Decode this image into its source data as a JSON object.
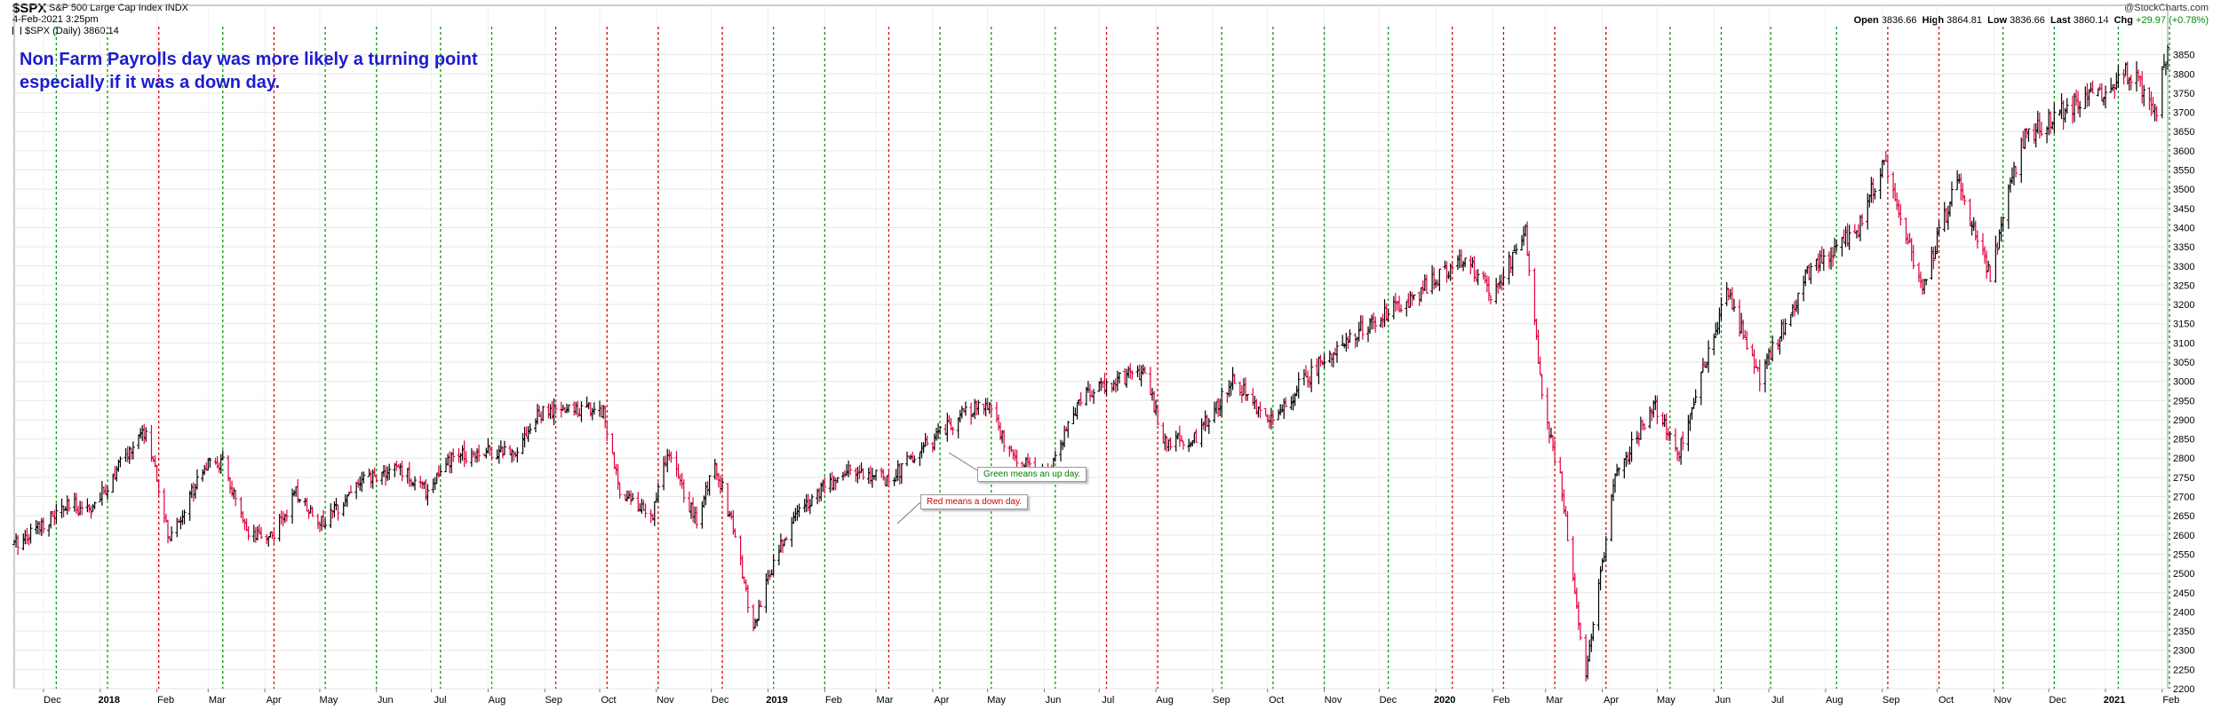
{
  "header": {
    "symbol": "$SPX",
    "name": "S&P 500 Large Cap Index",
    "exchange": "INDX",
    "datetime": "4-Feb-2021 3:25pm",
    "series_label": "$SPX (Daily) 3860.14",
    "brand": "@StockCharts.com",
    "quote": {
      "open_label": "Open",
      "open": "3836.66",
      "high_label": "High",
      "high": "3864.81",
      "low_label": "Low",
      "low": "3836.66",
      "last_label": "Last",
      "last": "3860.14",
      "chg_label": "Chg",
      "chg": "+29.97 (+0.78%)"
    }
  },
  "annotation": {
    "line1": "Non Farm Payrolls day was more likely a turning point",
    "line2": "especially if it was a down day."
  },
  "callouts": {
    "green": "Green means an up day.",
    "red": "Red means a down day."
  },
  "colors": {
    "up_line": "#00a000",
    "down_line": "#e00000",
    "annotation": "#1c1cd0",
    "candle_up": "#000000",
    "candle_down": "#e0003a"
  },
  "chart_data": {
    "type": "line",
    "title": "$SPX S&P 500 Large Cap Index INDX",
    "subtitle": "$SPX (Daily) 3860.14",
    "xlabel": "",
    "ylabel": "",
    "ylim": [
      2200,
      3900
    ],
    "yticks": [
      2200,
      2250,
      2300,
      2350,
      2400,
      2450,
      2500,
      2550,
      2600,
      2650,
      2700,
      2750,
      2800,
      2850,
      2900,
      2950,
      3000,
      3050,
      3100,
      3150,
      3200,
      3250,
      3300,
      3350,
      3400,
      3450,
      3500,
      3550,
      3600,
      3650,
      3700,
      3750,
      3800,
      3850
    ],
    "grid": true,
    "x_range": [
      "2017-11-15",
      "2021-02-04"
    ],
    "month_ticks": [
      {
        "date": "2017-12-01",
        "label": "Dec",
        "bold": false
      },
      {
        "date": "2018-01-01",
        "label": "2018",
        "bold": true
      },
      {
        "date": "2018-02-01",
        "label": "Feb",
        "bold": false
      },
      {
        "date": "2018-03-01",
        "label": "Mar",
        "bold": false
      },
      {
        "date": "2018-04-01",
        "label": "Apr",
        "bold": false
      },
      {
        "date": "2018-05-01",
        "label": "May",
        "bold": false
      },
      {
        "date": "2018-06-01",
        "label": "Jun",
        "bold": false
      },
      {
        "date": "2018-07-01",
        "label": "Jul",
        "bold": false
      },
      {
        "date": "2018-08-01",
        "label": "Aug",
        "bold": false
      },
      {
        "date": "2018-09-01",
        "label": "Sep",
        "bold": false
      },
      {
        "date": "2018-10-01",
        "label": "Oct",
        "bold": false
      },
      {
        "date": "2018-11-01",
        "label": "Nov",
        "bold": false
      },
      {
        "date": "2018-12-01",
        "label": "Dec",
        "bold": false
      },
      {
        "date": "2019-01-01",
        "label": "2019",
        "bold": true
      },
      {
        "date": "2019-02-01",
        "label": "Feb",
        "bold": false
      },
      {
        "date": "2019-03-01",
        "label": "Mar",
        "bold": false
      },
      {
        "date": "2019-04-01",
        "label": "Apr",
        "bold": false
      },
      {
        "date": "2019-05-01",
        "label": "May",
        "bold": false
      },
      {
        "date": "2019-06-01",
        "label": "Jun",
        "bold": false
      },
      {
        "date": "2019-07-01",
        "label": "Jul",
        "bold": false
      },
      {
        "date": "2019-08-01",
        "label": "Aug",
        "bold": false
      },
      {
        "date": "2019-09-01",
        "label": "Sep",
        "bold": false
      },
      {
        "date": "2019-10-01",
        "label": "Oct",
        "bold": false
      },
      {
        "date": "2019-11-01",
        "label": "Nov",
        "bold": false
      },
      {
        "date": "2019-12-01",
        "label": "Dec",
        "bold": false
      },
      {
        "date": "2020-01-01",
        "label": "2020",
        "bold": true
      },
      {
        "date": "2020-02-01",
        "label": "Feb",
        "bold": false
      },
      {
        "date": "2020-03-01",
        "label": "Mar",
        "bold": false
      },
      {
        "date": "2020-04-01",
        "label": "Apr",
        "bold": false
      },
      {
        "date": "2020-05-01",
        "label": "May",
        "bold": false
      },
      {
        "date": "2020-06-01",
        "label": "Jun",
        "bold": false
      },
      {
        "date": "2020-07-01",
        "label": "Jul",
        "bold": false
      },
      {
        "date": "2020-08-01",
        "label": "Aug",
        "bold": false
      },
      {
        "date": "2020-09-01",
        "label": "Sep",
        "bold": false
      },
      {
        "date": "2020-10-01",
        "label": "Oct",
        "bold": false
      },
      {
        "date": "2020-11-01",
        "label": "Nov",
        "bold": false
      },
      {
        "date": "2020-12-01",
        "label": "Dec",
        "bold": false
      },
      {
        "date": "2021-01-01",
        "label": "2021",
        "bold": true
      },
      {
        "date": "2021-02-01",
        "label": "Feb",
        "bold": false
      }
    ],
    "nfp_days": [
      {
        "date": "2017-12-08",
        "dir": "up"
      },
      {
        "date": "2018-01-05",
        "dir": "up"
      },
      {
        "date": "2018-02-02",
        "dir": "down"
      },
      {
        "date": "2018-03-09",
        "dir": "up"
      },
      {
        "date": "2018-04-06",
        "dir": "down"
      },
      {
        "date": "2018-05-04",
        "dir": "up"
      },
      {
        "date": "2018-06-01",
        "dir": "up"
      },
      {
        "date": "2018-07-06",
        "dir": "up"
      },
      {
        "date": "2018-08-03",
        "dir": "up"
      },
      {
        "date": "2018-09-07",
        "dir": "down"
      },
      {
        "date": "2018-10-05",
        "dir": "down"
      },
      {
        "date": "2018-11-02",
        "dir": "down"
      },
      {
        "date": "2018-12-07",
        "dir": "down"
      },
      {
        "date": "2019-01-04",
        "dir": "up"
      },
      {
        "date": "2019-02-01",
        "dir": "up"
      },
      {
        "date": "2019-03-08",
        "dir": "down"
      },
      {
        "date": "2019-04-05",
        "dir": "up"
      },
      {
        "date": "2019-05-03",
        "dir": "up"
      },
      {
        "date": "2019-06-07",
        "dir": "up"
      },
      {
        "date": "2019-07-05",
        "dir": "down"
      },
      {
        "date": "2019-08-02",
        "dir": "down"
      },
      {
        "date": "2019-09-06",
        "dir": "up"
      },
      {
        "date": "2019-10-04",
        "dir": "up"
      },
      {
        "date": "2019-11-01",
        "dir": "up"
      },
      {
        "date": "2019-12-06",
        "dir": "up"
      },
      {
        "date": "2020-01-10",
        "dir": "down"
      },
      {
        "date": "2020-02-07",
        "dir": "down"
      },
      {
        "date": "2020-03-06",
        "dir": "down"
      },
      {
        "date": "2020-04-03",
        "dir": "down"
      },
      {
        "date": "2020-05-08",
        "dir": "up"
      },
      {
        "date": "2020-06-05",
        "dir": "up"
      },
      {
        "date": "2020-07-02",
        "dir": "up"
      },
      {
        "date": "2020-08-07",
        "dir": "up"
      },
      {
        "date": "2020-09-04",
        "dir": "down"
      },
      {
        "date": "2020-10-02",
        "dir": "down"
      },
      {
        "date": "2020-11-06",
        "dir": "up"
      },
      {
        "date": "2020-12-04",
        "dir": "up"
      },
      {
        "date": "2021-01-08",
        "dir": "up"
      },
      {
        "date": "2021-02-05",
        "dir": "up"
      }
    ],
    "series": [
      {
        "name": "$SPX (Daily)",
        "points": [
          [
            "2017-11-15",
            2575
          ],
          [
            "2017-11-29",
            2626
          ],
          [
            "2017-12-15",
            2675
          ],
          [
            "2017-12-29",
            2673
          ],
          [
            "2018-01-12",
            2786
          ],
          [
            "2018-01-26",
            2872
          ],
          [
            "2018-02-08",
            2581
          ],
          [
            "2018-02-26",
            2779
          ],
          [
            "2018-03-09",
            2786
          ],
          [
            "2018-03-23",
            2588
          ],
          [
            "2018-04-06",
            2604
          ],
          [
            "2018-04-18",
            2708
          ],
          [
            "2018-05-03",
            2629
          ],
          [
            "2018-05-21",
            2733
          ],
          [
            "2018-06-13",
            2775
          ],
          [
            "2018-06-28",
            2716
          ],
          [
            "2018-07-13",
            2801
          ],
          [
            "2018-07-27",
            2819
          ],
          [
            "2018-08-15",
            2818
          ],
          [
            "2018-08-29",
            2914
          ],
          [
            "2018-09-20",
            2930
          ],
          [
            "2018-10-03",
            2925
          ],
          [
            "2018-10-11",
            2728
          ],
          [
            "2018-10-29",
            2641
          ],
          [
            "2018-11-07",
            2813
          ],
          [
            "2018-11-23",
            2633
          ],
          [
            "2018-12-03",
            2790
          ],
          [
            "2018-12-14",
            2600
          ],
          [
            "2018-12-24",
            2351
          ],
          [
            "2019-01-04",
            2532
          ],
          [
            "2019-01-18",
            2670
          ],
          [
            "2019-02-15",
            2775
          ],
          [
            "2019-03-08",
            2743
          ],
          [
            "2019-03-29",
            2834
          ],
          [
            "2019-04-15",
            2905
          ],
          [
            "2019-04-30",
            2946
          ],
          [
            "2019-05-13",
            2812
          ],
          [
            "2019-06-03",
            2744
          ],
          [
            "2019-06-20",
            2954
          ],
          [
            "2019-07-15",
            3014
          ],
          [
            "2019-07-26",
            3025
          ],
          [
            "2019-08-05",
            2844
          ],
          [
            "2019-08-23",
            2847
          ],
          [
            "2019-09-12",
            3009
          ],
          [
            "2019-10-02",
            2887
          ],
          [
            "2019-10-18",
            2986
          ],
          [
            "2019-11-08",
            3093
          ],
          [
            "2019-11-27",
            3154
          ],
          [
            "2019-12-20",
            3221
          ],
          [
            "2020-01-17",
            3329
          ],
          [
            "2020-01-31",
            3225
          ],
          [
            "2020-02-19",
            3386
          ],
          [
            "2020-02-28",
            2954
          ],
          [
            "2020-03-09",
            2746
          ],
          [
            "2020-03-23",
            2237
          ],
          [
            "2020-04-08",
            2750
          ],
          [
            "2020-04-29",
            2939
          ],
          [
            "2020-05-13",
            2820
          ],
          [
            "2020-06-08",
            3232
          ],
          [
            "2020-06-26",
            3009
          ],
          [
            "2020-07-22",
            3276
          ],
          [
            "2020-08-18",
            3390
          ],
          [
            "2020-09-02",
            3580
          ],
          [
            "2020-09-23",
            3237
          ],
          [
            "2020-10-12",
            3534
          ],
          [
            "2020-10-30",
            3270
          ],
          [
            "2020-11-16",
            3627
          ],
          [
            "2020-12-08",
            3702
          ],
          [
            "2020-12-31",
            3756
          ],
          [
            "2021-01-13",
            3809
          ],
          [
            "2021-01-29",
            3714
          ],
          [
            "2021-02-04",
            3860
          ]
        ]
      }
    ]
  }
}
